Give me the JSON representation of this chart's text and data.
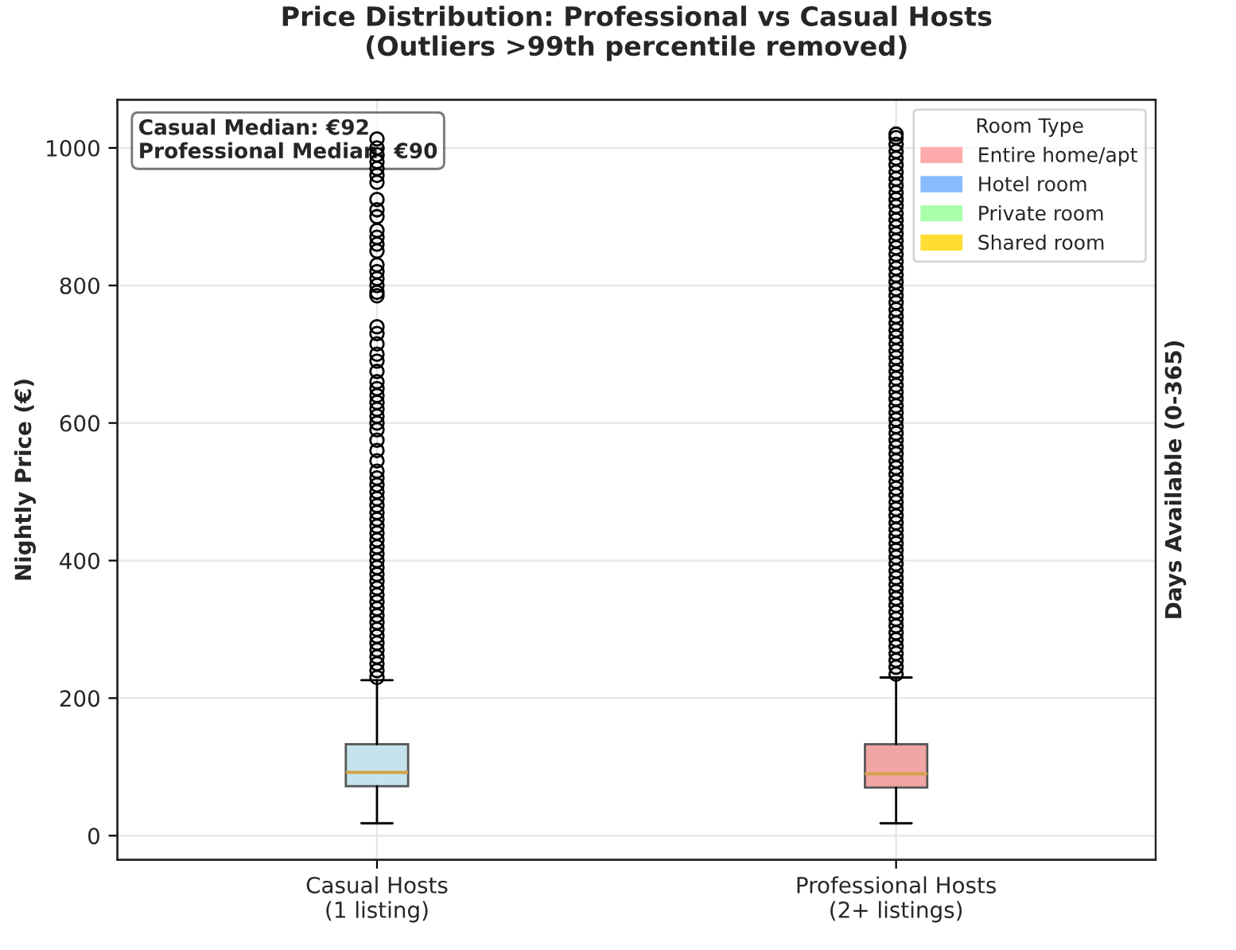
{
  "chart_data": {
    "type": "box",
    "title": "Price Distribution: Professional vs Casual Hosts\n(Outliers >99th percentile removed)",
    "ylabel": "Nightly Price (€)",
    "y2label": "Days Available (0-365)",
    "categories": [
      "Casual Hosts\n(1 listing)",
      "Professional Hosts\n(2+ listings)"
    ],
    "colors": [
      "#c4e3ec",
      "#f2a5a5"
    ],
    "boxes": [
      {
        "low": 18,
        "q1": 72,
        "median": 92,
        "q3": 133,
        "high": 226,
        "outliers": [
          230,
          240,
          250,
          260,
          270,
          280,
          290,
          300,
          310,
          320,
          330,
          340,
          350,
          360,
          370,
          380,
          390,
          400,
          410,
          420,
          430,
          440,
          450,
          460,
          470,
          480,
          490,
          500,
          510,
          520,
          530,
          545,
          560,
          575,
          590,
          600,
          610,
          620,
          630,
          640,
          650,
          660,
          675,
          690,
          700,
          715,
          730,
          740,
          785,
          790,
          800,
          810,
          820,
          830,
          850,
          860,
          870,
          880,
          900,
          910,
          925,
          950,
          960,
          970,
          980,
          990,
          1000,
          1013
        ]
      },
      {
        "low": 18,
        "q1": 70,
        "median": 90,
        "q3": 133,
        "high": 230,
        "outliers": [
          235,
          245,
          255,
          265,
          275,
          285,
          295,
          305,
          315,
          325,
          335,
          345,
          355,
          365,
          375,
          385,
          395,
          405,
          415,
          425,
          435,
          445,
          455,
          465,
          475,
          485,
          495,
          505,
          515,
          525,
          535,
          545,
          555,
          565,
          575,
          585,
          595,
          605,
          615,
          625,
          635,
          645,
          655,
          665,
          675,
          685,
          695,
          705,
          715,
          725,
          735,
          745,
          755,
          765,
          775,
          785,
          795,
          805,
          815,
          825,
          835,
          845,
          855,
          865,
          875,
          885,
          895,
          905,
          915,
          925,
          935,
          945,
          955,
          965,
          975,
          985,
          995,
          1005,
          1015,
          1020
        ]
      }
    ],
    "ylim": [
      -35,
      1070
    ],
    "yticks": [
      0,
      200,
      400,
      600,
      800,
      1000
    ],
    "grid": true,
    "legend": "top right",
    "legend_title": "Room Type",
    "series": [
      {
        "name": "Entire home/apt",
        "color": "#ffaaaa",
        "values": [
          null,
          null
        ]
      },
      {
        "name": "Hotel room",
        "color": "#88bbff",
        "values": [
          null,
          null
        ]
      },
      {
        "name": "Private room",
        "color": "#aaffaa",
        "values": [
          null,
          null
        ]
      },
      {
        "name": "Shared room",
        "color": "#ffdd33",
        "values": [
          null,
          null
        ]
      }
    ],
    "annotations": [
      "Casual Median: €92\nProfessional Median: €90"
    ]
  }
}
